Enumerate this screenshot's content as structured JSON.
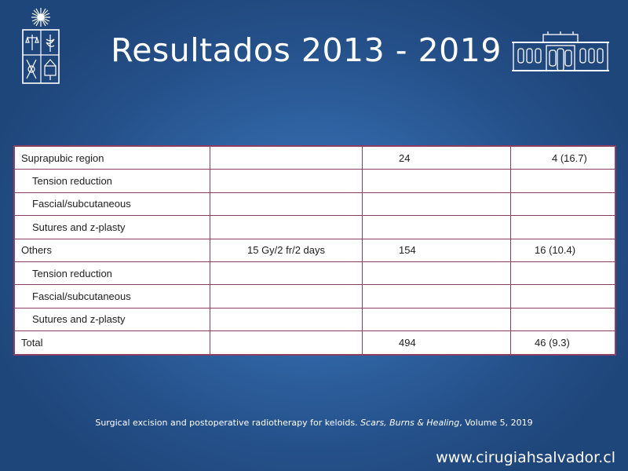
{
  "slide": {
    "title": "Resultados 2013 - 2019",
    "website": "www.cirugiahsalvador.cl"
  },
  "table": {
    "rows": [
      {
        "label": "Suprapubic region",
        "dose": "",
        "n": "24",
        "result": "4 (16.7)"
      },
      {
        "label": "Tension reduction",
        "dose": "",
        "n": "",
        "result": ""
      },
      {
        "label": "Fascial/subcutaneous",
        "dose": "",
        "n": "",
        "result": ""
      },
      {
        "label": "Sutures and z-plasty",
        "dose": "",
        "n": "",
        "result": ""
      },
      {
        "label": "Others",
        "dose": "15 Gy/2 fr/2 days",
        "n": "154",
        "result": "16 (10.4)"
      },
      {
        "label": "Tension reduction",
        "dose": "",
        "n": "",
        "result": ""
      },
      {
        "label": "Fascial/subcutaneous",
        "dose": "",
        "n": "",
        "result": ""
      },
      {
        "label": "Sutures and z-plasty",
        "dose": "",
        "n": "",
        "result": ""
      },
      {
        "label": "Total",
        "dose": "",
        "n": "494",
        "result": "46 (9.3)"
      }
    ]
  },
  "citation": {
    "text_before": "Surgical excision and postoperative radiotherapy for keloids. ",
    "journal": "Scars, Burns & Healing",
    "text_after": ", Volume 5, 2019"
  },
  "colors": {
    "background": "#2f63a2",
    "table_border": "#8c3f64",
    "text_light": "#ffffff"
  },
  "icons": {
    "crest": "university-crest-icon",
    "building": "building-icon"
  }
}
